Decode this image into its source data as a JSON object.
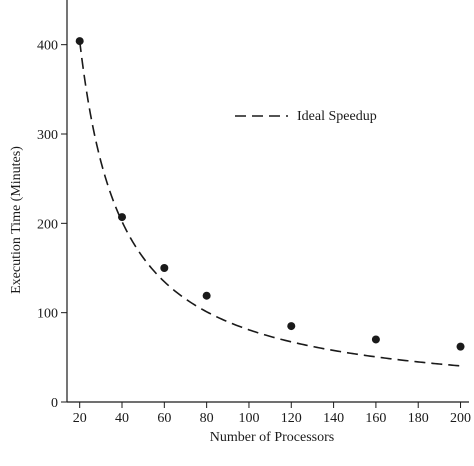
{
  "chart_data": {
    "type": "scatter",
    "xlabel": "Number of Processors",
    "ylabel": "Execution Time (Minutes)",
    "xlim": [
      14,
      204
    ],
    "ylim": [
      0,
      450
    ],
    "xticks": [
      20,
      40,
      60,
      80,
      100,
      120,
      140,
      160,
      180,
      200
    ],
    "yticks": [
      0,
      100,
      200,
      300,
      400
    ],
    "grid": false,
    "legend_position": "upper-right",
    "series": [
      {
        "marker": "filled-circle",
        "color": "#1a1a1a",
        "x": [
          20,
          40,
          60,
          80,
          120,
          160,
          200
        ],
        "y": [
          404,
          207,
          150,
          119,
          85,
          70,
          62
        ]
      },
      {
        "name": "Ideal Speedup",
        "style": "dashed-line",
        "color": "#1a1a1a",
        "formula": "y = 404 * 20 / x",
        "x_range": [
          20,
          200
        ]
      }
    ]
  },
  "legend": {
    "ideal_label": "Ideal Speedup"
  },
  "axes": {
    "xlabel": "Number of Processors",
    "ylabel": "Execution Time (Minutes)"
  }
}
